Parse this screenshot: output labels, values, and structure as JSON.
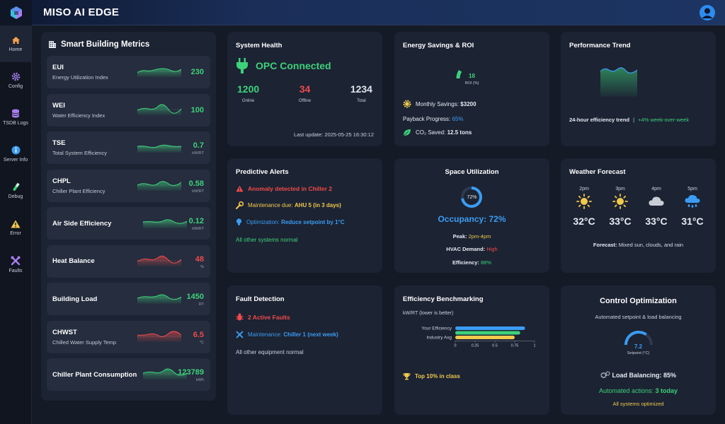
{
  "app": {
    "title": "MISO AI EDGE"
  },
  "sidebar": {
    "items": [
      {
        "label": "Home",
        "icon": "home-icon",
        "color": "#f5a04a"
      },
      {
        "label": "Config",
        "icon": "gear-icon",
        "color": "#a77ef0"
      },
      {
        "label": "TSDB Logs",
        "icon": "database-icon",
        "color": "#a77ef0"
      },
      {
        "label": "Server Info",
        "icon": "info-icon",
        "color": "#3b9cf2"
      },
      {
        "label": "Debug",
        "icon": "test-tube-icon",
        "color": "#3dd17a"
      },
      {
        "label": "Error",
        "icon": "warning-icon",
        "color": "#f2c94c"
      },
      {
        "label": "Faults",
        "icon": "tools-icon",
        "color": "#a77ef0"
      }
    ]
  },
  "metrics": {
    "title": "Smart Building Metrics",
    "items": [
      {
        "name": "EUI",
        "sub": "Energy Utilization Index",
        "value": "230",
        "unit": "",
        "status": "green"
      },
      {
        "name": "WEI",
        "sub": "Water Efficiency Index",
        "value": "100",
        "unit": "",
        "status": "green"
      },
      {
        "name": "TSE",
        "sub": "Total System Efficiency",
        "value": "0.7",
        "unit": "kW/RT",
        "status": "green"
      },
      {
        "name": "CHPL",
        "sub": "Chiller Plant Efficiency",
        "value": "0.58",
        "unit": "kW/RT",
        "status": "green"
      },
      {
        "name": "Air Side Efficiency",
        "sub": "",
        "value": "0.12",
        "unit": "kW/RT",
        "status": "green"
      },
      {
        "name": "Heat Balance",
        "sub": "",
        "value": "48",
        "unit": "%",
        "status": "red"
      },
      {
        "name": "Building Load",
        "sub": "",
        "value": "1450",
        "unit": "RT",
        "status": "green"
      },
      {
        "name": "CHWST",
        "sub": "Chilled Water Supply Temp",
        "value": "6.5",
        "unit": "°C",
        "status": "red"
      },
      {
        "name": "Chiller Plant Consumption",
        "sub": "",
        "value": "123789",
        "unit": "kWh",
        "status": "green"
      }
    ]
  },
  "system_health": {
    "title": "System Health",
    "status": "OPC Connected",
    "online": "1200",
    "online_label": "Online",
    "offline": "34",
    "offline_label": "Offline",
    "total": "1234",
    "total_label": "Total",
    "last_update": "Last update: 2025-05-25 16:30:12"
  },
  "energy": {
    "title": "Energy Savings & ROI",
    "roi_value": "18",
    "roi_label": "ROI (%)",
    "roi_fraction": 0.18,
    "monthly_label": "Monthly Savings:",
    "monthly_value": "$3200",
    "payback_label": "Payback Progress:",
    "payback_value": "65%",
    "co2_label": "CO₂ Saved:",
    "co2_value": "12.5 tons"
  },
  "performance": {
    "title": "Performance Trend",
    "caption": "24-hour efficiency trend",
    "sep": "|",
    "delta": "+4% week-over-week"
  },
  "alerts": {
    "title": "Predictive Alerts",
    "anomaly": "Anomaly detected in Chiller 2",
    "maint_label": "Maintenance due:",
    "maint_value": "AHU 5 (in 3 days)",
    "opt_label": "Optimization:",
    "opt_value": "Reduce setpoint by 1°C",
    "normal": "All other systems normal"
  },
  "space": {
    "title": "Space Utilization",
    "ring_value": "72%",
    "ring_fraction": 0.72,
    "occupancy": "Occupancy: 72%",
    "peak_label": "Peak:",
    "peak_value": "2pm-4pm",
    "hvac_label": "HVAC Demand:",
    "hvac_value": "High",
    "eff_label": "Efficiency:",
    "eff_value": "88%"
  },
  "weather": {
    "title": "Weather Forecast",
    "hours": [
      {
        "time": "2pm",
        "icon": "sun-icon",
        "temp": "32°C"
      },
      {
        "time": "3pm",
        "icon": "sun-icon",
        "temp": "33°C"
      },
      {
        "time": "4pm",
        "icon": "cloud-icon",
        "temp": "33°C"
      },
      {
        "time": "5pm",
        "icon": "rain-cloud-icon",
        "temp": "31°C"
      }
    ],
    "forecast_label": "Forecast:",
    "forecast_text": "Mixed sun, clouds, and rain"
  },
  "faults": {
    "title": "Fault Detection",
    "active": "2 Active Faults",
    "maint_label": "Maintenance:",
    "maint_value": "Chiller 1 (next week)",
    "normal": "All other equipment normal"
  },
  "benchmark": {
    "title": "Efficiency Benchmarking",
    "subtitle": "kW/RT (lower is better)",
    "badge": "Top 10% in class",
    "chart_data": {
      "type": "bar",
      "orientation": "horizontal",
      "categories": [
        "Your Efficiency",
        "",
        "Industry Avg"
      ],
      "values": [
        0.88,
        0.82,
        0.75
      ],
      "colors": [
        "#3b9cf2",
        "#3dd17a",
        "#f2c94c"
      ],
      "xlim": [
        0,
        1
      ],
      "ticks": [
        "0",
        "0.25",
        "0.5",
        "0.75",
        "1"
      ]
    }
  },
  "control": {
    "title": "Control Optimization",
    "subtitle": "Automated setpoint & load balancing",
    "gauge_value": "7.2",
    "gauge_label": "Setpoint (°C)",
    "gauge_fraction": 0.35,
    "lb_label": "Load Balancing:",
    "lb_value": "85%",
    "auto_label": "Automated actions:",
    "auto_value": "3 today",
    "status": "All systems optimized"
  },
  "colors": {
    "accent_green": "#3dd17a",
    "accent_red": "#f04a4a",
    "accent_blue": "#3b9cf2",
    "accent_yellow": "#f2c94c"
  }
}
